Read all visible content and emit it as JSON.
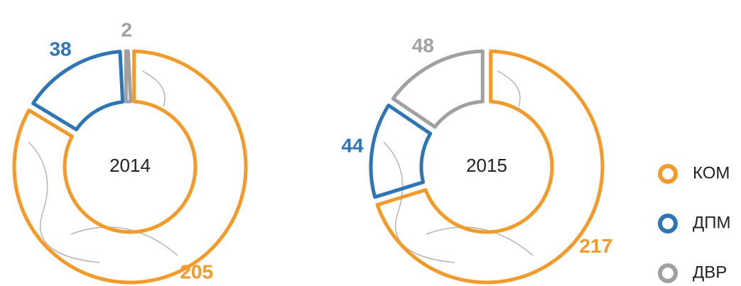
{
  "chart_data": [
    {
      "type": "donut",
      "title": "2014",
      "categories": [
        "КОМ",
        "ДПМ",
        "ДВР"
      ],
      "values": [
        205,
        38,
        2
      ],
      "colors": [
        "#f39a2b",
        "#2e75b6",
        "#a0a0a0"
      ]
    },
    {
      "type": "donut",
      "title": "2015",
      "categories": [
        "КОМ",
        "ДПМ",
        "ДВР"
      ],
      "values": [
        217,
        44,
        48
      ],
      "colors": [
        "#f39a2b",
        "#2e75b6",
        "#a0a0a0"
      ]
    }
  ]
}
